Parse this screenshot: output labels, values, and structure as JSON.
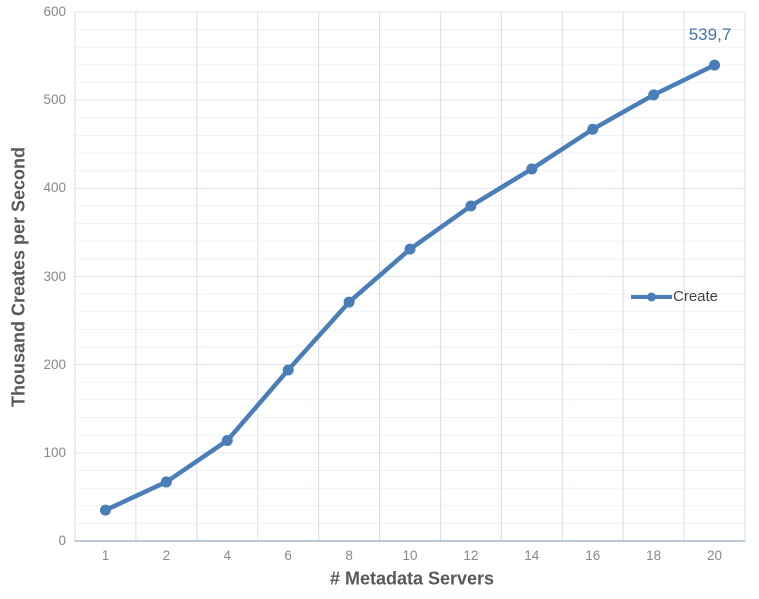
{
  "chart_data": {
    "type": "line",
    "title": "",
    "xlabel": "# Metadata Servers",
    "ylabel": "Thousand Creates per Second",
    "categories": [
      "1",
      "2",
      "4",
      "6",
      "8",
      "10",
      "12",
      "14",
      "16",
      "18",
      "20"
    ],
    "series": [
      {
        "name": "Create",
        "values": [
          35,
          67,
          114,
          194,
          271,
          331,
          380,
          422,
          467,
          506,
          539.7
        ]
      }
    ],
    "last_point_label": "539,7",
    "ylim": [
      0,
      600
    ],
    "y_major_ticks": [
      0,
      100,
      200,
      300,
      400,
      500,
      600
    ],
    "y_minor_step": 20,
    "grid": "horizontal major every 100 + faint minor every 20; vertical lines at category boundaries",
    "legend_position": "inside-right",
    "colors": {
      "series": "#4a7eb8",
      "data_label": "#4575ac",
      "axis_title": "#595959",
      "tick_label": "#898989",
      "legend_text": "#444444",
      "grid_minor": "#eff1f6",
      "grid_major": "#e1e6ef",
      "grid_vertical": "#d8deea",
      "axis_line": "#a9bad3",
      "background": "#ffffff"
    }
  }
}
